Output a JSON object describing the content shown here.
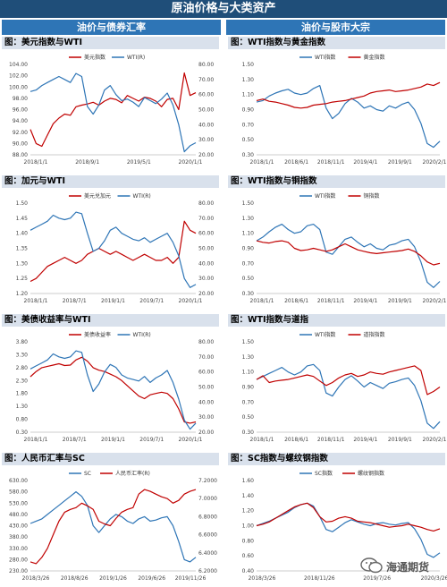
{
  "header": {
    "title": "原油价格与大类资产",
    "left_column": "油价与债券汇率",
    "right_column": "油价与股市大宗"
  },
  "watermark": {
    "text": "海通期货",
    "icon": "wechat-icon"
  },
  "colors": {
    "red": "#c00000",
    "blue": "#2e75b6"
  },
  "chart_data": [
    {
      "type": "line",
      "title": "图：美元指数与WTI",
      "x_ticks": [
        "2018/1/1",
        "2018/9/1",
        "2019/5/1",
        "2020/1/1"
      ],
      "y_left": {
        "ticks": [
          "104.00",
          "102.00",
          "100.00",
          "98.00",
          "96.00",
          "94.00",
          "92.00",
          "90.00",
          "88.00"
        ],
        "min": 88,
        "max": 104
      },
      "y_right": {
        "ticks": [
          "80.00",
          "70.00",
          "60.00",
          "50.00",
          "40.00",
          "30.00",
          "20.00"
        ],
        "min": 20,
        "max": 80
      },
      "series": [
        {
          "name": "美元指数",
          "color": "#c00000",
          "axis": "left",
          "values": [
            92.5,
            90.0,
            89.5,
            91.5,
            93.5,
            94.5,
            95.2,
            95.0,
            96.5,
            96.8,
            97.0,
            97.3,
            96.8,
            97.5,
            98.0,
            97.8,
            97.2,
            98.5,
            98.0,
            97.5,
            98.2,
            98.0,
            97.5,
            96.5,
            97.8,
            98.0,
            96.0,
            102.5,
            98.5,
            99.0
          ]
        },
        {
          "name": "WTI(R)",
          "color": "#2e75b6",
          "axis": "right",
          "values": [
            62,
            63,
            66,
            68,
            70,
            72,
            70,
            68,
            74,
            72,
            52,
            47,
            53,
            63,
            66,
            60,
            56,
            57,
            55,
            52,
            58,
            56,
            54,
            57,
            61,
            53,
            40,
            22,
            26,
            28
          ]
        }
      ]
    },
    {
      "type": "line",
      "title": "图：WTI指数与黄金指数",
      "x_ticks": [
        "2018/1/1",
        "2018/6/1",
        "2018/11/1",
        "2019/4/1",
        "2019/9/1",
        "2020/2/1"
      ],
      "y_left": {
        "ticks": [
          "1.50",
          "1.30",
          "1.10",
          "0.90",
          "0.70",
          "0.50",
          "0.30"
        ],
        "min": 0.3,
        "max": 1.5
      },
      "series": [
        {
          "name": "WTI指数",
          "color": "#2e75b6",
          "axis": "left",
          "values": [
            1.0,
            1.02,
            1.08,
            1.12,
            1.15,
            1.17,
            1.12,
            1.1,
            1.12,
            1.18,
            1.22,
            0.92,
            0.78,
            0.85,
            0.98,
            1.05,
            1.0,
            0.92,
            0.95,
            0.9,
            0.88,
            0.95,
            0.92,
            0.97,
            1.0,
            0.9,
            0.72,
            0.45,
            0.4,
            0.48
          ]
        },
        {
          "name": "黄金指数",
          "color": "#c00000",
          "axis": "left",
          "values": [
            1.02,
            1.04,
            1.01,
            1.0,
            0.98,
            0.96,
            0.93,
            0.92,
            0.93,
            0.96,
            0.97,
            0.98,
            1.0,
            1.01,
            1.02,
            1.04,
            1.06,
            1.08,
            1.12,
            1.14,
            1.15,
            1.16,
            1.14,
            1.15,
            1.16,
            1.18,
            1.2,
            1.24,
            1.22,
            1.26
          ]
        }
      ]
    },
    {
      "type": "line",
      "title": "图：加元与WTI",
      "x_ticks": [
        "2018/1/1",
        "2018/7/1",
        "2019/1/1",
        "2019/7/1",
        "2020/1/1"
      ],
      "y_left": {
        "ticks": [
          "1.50",
          "1.45",
          "1.40",
          "1.35",
          "1.30",
          "1.25",
          "1.20"
        ],
        "min": 1.2,
        "max": 1.5
      },
      "y_right": {
        "ticks": [
          "80.00",
          "70.00",
          "60.00",
          "50.00",
          "40.00",
          "30.00",
          "20.00"
        ],
        "min": 20,
        "max": 80
      },
      "series": [
        {
          "name": "美元兑加元",
          "color": "#c00000",
          "axis": "left",
          "values": [
            1.24,
            1.25,
            1.27,
            1.29,
            1.3,
            1.31,
            1.32,
            1.31,
            1.3,
            1.31,
            1.33,
            1.34,
            1.35,
            1.34,
            1.33,
            1.34,
            1.33,
            1.32,
            1.31,
            1.32,
            1.33,
            1.32,
            1.31,
            1.31,
            1.32,
            1.3,
            1.32,
            1.44,
            1.41,
            1.4
          ]
        },
        {
          "name": "WTI(R)",
          "color": "#2e75b6",
          "axis": "right",
          "values": [
            62,
            64,
            66,
            68,
            72,
            70,
            69,
            70,
            74,
            73,
            60,
            48,
            50,
            55,
            62,
            64,
            60,
            58,
            56,
            55,
            57,
            54,
            56,
            58,
            60,
            54,
            45,
            30,
            24,
            26
          ]
        }
      ]
    },
    {
      "type": "line",
      "title": "图：WTI指数与铜指数",
      "x_ticks": [
        "2018/1/1",
        "2018/6/1",
        "2018/11/1",
        "2019/4/1",
        "2019/9/1",
        "2020/2/1"
      ],
      "y_left": {
        "ticks": [
          "1.50",
          "1.30",
          "1.10",
          "0.90",
          "0.70",
          "0.50",
          "0.30"
        ],
        "min": 0.3,
        "max": 1.5
      },
      "series": [
        {
          "name": "WTI指数",
          "color": "#2e75b6",
          "axis": "left",
          "values": [
            1.0,
            1.05,
            1.12,
            1.18,
            1.22,
            1.15,
            1.1,
            1.12,
            1.2,
            1.22,
            1.15,
            0.85,
            0.82,
            0.92,
            1.02,
            1.05,
            0.98,
            0.92,
            0.96,
            0.9,
            0.88,
            0.94,
            0.96,
            1.0,
            1.02,
            0.92,
            0.72,
            0.45,
            0.38,
            0.46
          ]
        },
        {
          "name": "铜指数",
          "color": "#c00000",
          "axis": "left",
          "values": [
            1.0,
            0.98,
            0.97,
            0.99,
            1.0,
            0.98,
            0.9,
            0.87,
            0.88,
            0.9,
            0.88,
            0.86,
            0.88,
            0.92,
            0.96,
            0.92,
            0.88,
            0.86,
            0.84,
            0.83,
            0.84,
            0.85,
            0.86,
            0.87,
            0.89,
            0.86,
            0.8,
            0.72,
            0.68,
            0.7
          ]
        }
      ]
    },
    {
      "type": "line",
      "title": "图：美债收益率与WTI",
      "x_ticks": [
        "2018/1/1",
        "2018/7/1",
        "2019/1/1",
        "2019/7/1",
        "2020/1/1"
      ],
      "y_left": {
        "ticks": [
          "3.80",
          "3.30",
          "2.80",
          "2.30",
          "1.80",
          "1.30",
          "0.80",
          "0.30"
        ],
        "min": 0.3,
        "max": 3.8
      },
      "y_right": {
        "ticks": [
          "80.00",
          "70.00",
          "60.00",
          "50.00",
          "40.00",
          "30.00",
          "20.00"
        ],
        "min": 20,
        "max": 80
      },
      "series": [
        {
          "name": "美债收益率",
          "color": "#c00000",
          "axis": "left",
          "values": [
            2.45,
            2.65,
            2.8,
            2.85,
            2.9,
            2.95,
            2.88,
            2.9,
            3.1,
            3.2,
            3.05,
            2.8,
            2.7,
            2.65,
            2.55,
            2.45,
            2.3,
            2.1,
            1.9,
            1.7,
            1.6,
            1.75,
            1.8,
            1.85,
            1.8,
            1.6,
            1.2,
            0.7,
            0.65,
            0.7
          ]
        },
        {
          "name": "WTI(R)",
          "color": "#2e75b6",
          "axis": "right",
          "values": [
            62,
            64,
            66,
            68,
            72,
            70,
            69,
            70,
            74,
            73,
            58,
            47,
            52,
            60,
            65,
            63,
            58,
            56,
            55,
            54,
            57,
            53,
            56,
            58,
            61,
            53,
            42,
            28,
            22,
            26
          ]
        }
      ]
    },
    {
      "type": "line",
      "title": "图：WTI指数与道指",
      "x_ticks": [
        "2018/1/1",
        "2018/6/1",
        "2018/11/1",
        "2019/4/1",
        "2019/9/1",
        "2020/2/1"
      ],
      "y_left": {
        "ticks": [
          "1.50",
          "1.30",
          "1.10",
          "0.90",
          "0.70",
          "0.50",
          "0.30"
        ],
        "min": 0.3,
        "max": 1.5
      },
      "series": [
        {
          "name": "WTI指数",
          "color": "#2e75b6",
          "axis": "left",
          "values": [
            1.0,
            1.04,
            1.08,
            1.12,
            1.16,
            1.1,
            1.06,
            1.1,
            1.18,
            1.2,
            1.12,
            0.82,
            0.78,
            0.9,
            1.0,
            1.05,
            0.98,
            0.9,
            0.96,
            0.92,
            0.88,
            0.95,
            0.97,
            1.0,
            1.02,
            0.92,
            0.72,
            0.42,
            0.35,
            0.44
          ]
        },
        {
          "name": "道指指数",
          "color": "#c00000",
          "axis": "left",
          "values": [
            1.0,
            1.05,
            0.96,
            0.98,
            0.99,
            1.0,
            1.02,
            1.04,
            1.06,
            1.04,
            0.98,
            0.92,
            0.96,
            1.02,
            1.06,
            1.08,
            1.04,
            1.06,
            1.1,
            1.08,
            1.07,
            1.1,
            1.12,
            1.14,
            1.16,
            1.18,
            1.12,
            0.8,
            0.84,
            0.9
          ]
        }
      ]
    },
    {
      "type": "line",
      "title": "图：人民币汇率与SC",
      "x_ticks": [
        "2018/3/26",
        "2018/8/26",
        "2019/1/26",
        "2019/6/26",
        "2019/11/26"
      ],
      "y_left": {
        "ticks": [
          "630.00",
          "580.00",
          "530.00",
          "480.00",
          "430.00",
          "380.00",
          "330.00",
          "280.00",
          "230.00"
        ],
        "min": 230,
        "max": 630
      },
      "y_right": {
        "ticks": [
          "7.2000",
          "7.0000",
          "6.8000",
          "6.6000",
          "6.4000",
          "6.2000"
        ],
        "min": 6.2,
        "max": 7.2
      },
      "series": [
        {
          "name": "SC",
          "color": "#2e75b6",
          "axis": "left",
          "values": [
            440,
            450,
            460,
            480,
            500,
            520,
            540,
            560,
            580,
            560,
            520,
            430,
            400,
            430,
            460,
            480,
            470,
            450,
            440,
            460,
            470,
            450,
            455,
            465,
            470,
            430,
            360,
            280,
            270,
            290
          ]
        },
        {
          "name": "人民币汇率(R)",
          "color": "#c00000",
          "axis": "right",
          "values": [
            6.3,
            6.28,
            6.35,
            6.45,
            6.6,
            6.75,
            6.85,
            6.88,
            6.9,
            6.95,
            6.92,
            6.88,
            6.75,
            6.72,
            6.7,
            6.78,
            6.85,
            6.88,
            6.9,
            7.05,
            7.1,
            7.08,
            7.05,
            7.02,
            7.0,
            6.95,
            6.98,
            7.05,
            7.08,
            7.1
          ]
        }
      ]
    },
    {
      "type": "line",
      "title": "图：SC指数与螺纹钢指数",
      "x_ticks": [
        "2018/3/26",
        "2018/11/26",
        "2019/7/26",
        "2020/3/26"
      ],
      "y_left": {
        "ticks": [
          "1.60",
          "1.40",
          "1.20",
          "1.00",
          "0.80",
          "0.60",
          "0.40"
        ],
        "min": 0.4,
        "max": 1.6
      },
      "series": [
        {
          "name": "SC指数",
          "color": "#2e75b6",
          "axis": "left",
          "values": [
            1.0,
            1.03,
            1.06,
            1.1,
            1.14,
            1.18,
            1.24,
            1.28,
            1.3,
            1.26,
            1.12,
            0.95,
            0.92,
            0.98,
            1.04,
            1.08,
            1.05,
            1.02,
            1.0,
            1.03,
            1.04,
            1.02,
            1.01,
            1.03,
            1.04,
            0.96,
            0.82,
            0.62,
            0.58,
            0.64
          ]
        },
        {
          "name": "螺纹钢指数",
          "color": "#c00000",
          "axis": "left",
          "values": [
            1.0,
            1.02,
            1.05,
            1.1,
            1.15,
            1.2,
            1.25,
            1.28,
            1.3,
            1.24,
            1.12,
            1.05,
            1.06,
            1.1,
            1.12,
            1.1,
            1.06,
            1.05,
            1.04,
            1.02,
            1.0,
            0.98,
            0.99,
            1.0,
            1.02,
            1.0,
            0.98,
            0.95,
            0.93,
            0.96
          ]
        }
      ]
    }
  ]
}
